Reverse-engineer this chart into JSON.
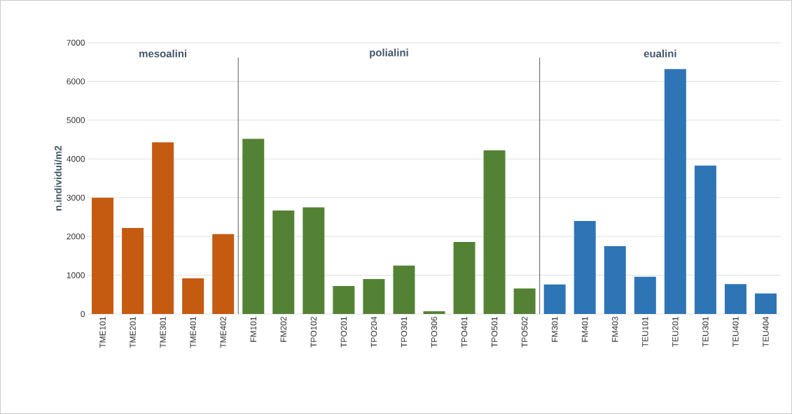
{
  "chart_data": {
    "type": "bar",
    "ylabel": "n.individui/m2",
    "categories": [
      "TME101",
      "TME201",
      "TME301",
      "TME401",
      "TME402",
      "FM101",
      "FM202",
      "TPO102",
      "TPO201",
      "TPO204",
      "TPO301",
      "TPO306",
      "TPO401",
      "TPO501",
      "TPO502",
      "FM301",
      "FM401",
      "FM403",
      "TEU101",
      "TEU201",
      "TEU301",
      "TEU401",
      "TEU404"
    ],
    "values": [
      3000,
      2220,
      4430,
      920,
      2060,
      4520,
      2670,
      2750,
      720,
      900,
      1250,
      70,
      1860,
      4220,
      660,
      760,
      2400,
      1750,
      960,
      6320,
      3830,
      770,
      530
    ],
    "colors": [
      "#c55a11",
      "#c55a11",
      "#c55a11",
      "#c55a11",
      "#c55a11",
      "#548235",
      "#548235",
      "#548235",
      "#548235",
      "#548235",
      "#548235",
      "#548235",
      "#548235",
      "#548235",
      "#548235",
      "#2e75b6",
      "#2e75b6",
      "#2e75b6",
      "#2e75b6",
      "#2e75b6",
      "#2e75b6",
      "#2e75b6",
      "#2e75b6"
    ],
    "ylim": [
      0,
      7000
    ],
    "yticks": [
      0,
      1000,
      2000,
      3000,
      4000,
      5000,
      6000,
      7000
    ],
    "grid": "y",
    "annotations": [
      "mesoalini",
      "polialini",
      "eualini"
    ]
  }
}
